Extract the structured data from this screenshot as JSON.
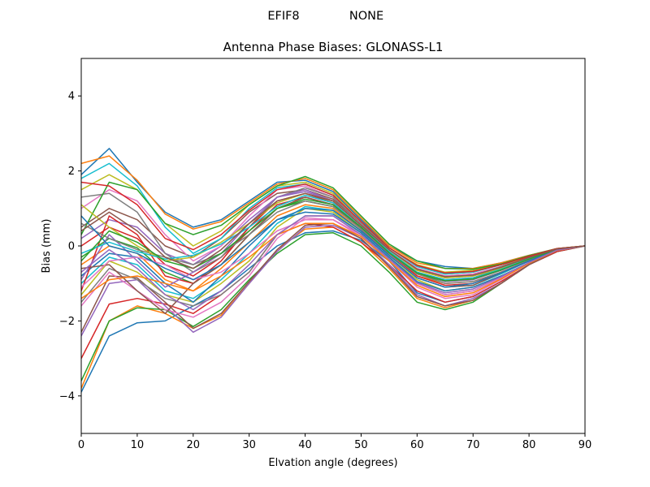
{
  "figure": {
    "suptitle_left": "EFIF8",
    "suptitle_right": "NONE"
  },
  "chart_data": {
    "type": "line",
    "title": "Antenna Phase Biases: GLONASS-L1",
    "xlabel": "Elvation angle (degrees)",
    "ylabel": "Bias (mm)",
    "xlim": [
      0,
      90
    ],
    "ylim": [
      -5,
      5
    ],
    "xticks": [
      0,
      10,
      20,
      30,
      40,
      50,
      60,
      70,
      80,
      90
    ],
    "yticks": [
      -4,
      -2,
      0,
      2,
      4
    ],
    "grid": false,
    "legend": "none",
    "x": [
      0,
      5,
      10,
      15,
      20,
      25,
      30,
      35,
      40,
      45,
      50,
      55,
      60,
      65,
      70,
      75,
      80,
      85,
      90
    ],
    "colors": [
      "#1f77b4",
      "#ff7f0e",
      "#2ca02c",
      "#d62728",
      "#9467bd",
      "#8c564b",
      "#e377c2",
      "#7f7f7f",
      "#bcbd22",
      "#17becf"
    ],
    "series": [
      {
        "values": [
          -3.9,
          -2.4,
          -2.05,
          -2.0,
          -1.6,
          -1.2,
          -0.6,
          0.0,
          0.35,
          0.4,
          0.15,
          -0.4,
          -1.25,
          -1.5,
          -1.35,
          -0.95,
          -0.5,
          -0.15,
          0.0
        ]
      },
      {
        "values": [
          -3.8,
          -2.0,
          -1.6,
          -1.8,
          -2.2,
          -1.85,
          -1.0,
          -0.1,
          0.45,
          0.5,
          0.1,
          -0.6,
          -1.4,
          -1.65,
          -1.45,
          -1.0,
          -0.5,
          -0.12,
          0.0
        ]
      },
      {
        "values": [
          -3.6,
          -2.0,
          -1.65,
          -1.7,
          -2.15,
          -1.7,
          -0.9,
          -0.2,
          0.3,
          0.35,
          0.0,
          -0.7,
          -1.5,
          -1.7,
          -1.5,
          -1.0,
          -0.5,
          -0.15,
          0.0
        ]
      },
      {
        "values": [
          -3.0,
          -1.55,
          -1.4,
          -1.55,
          -1.8,
          -1.3,
          -0.7,
          0.3,
          0.6,
          0.5,
          0.1,
          -0.5,
          -1.2,
          -1.5,
          -1.35,
          -0.95,
          -0.5,
          -0.15,
          0.0
        ]
      },
      {
        "values": [
          -2.4,
          -1.0,
          -0.9,
          -1.6,
          -2.3,
          -1.9,
          -1.0,
          -0.15,
          0.5,
          0.55,
          0.2,
          -0.5,
          -1.3,
          -1.6,
          -1.4,
          -1.0,
          -0.5,
          -0.12,
          0.0
        ]
      },
      {
        "values": [
          -2.3,
          -0.8,
          -0.85,
          -1.5,
          -2.2,
          -1.8,
          -0.95,
          -0.1,
          0.55,
          0.6,
          0.2,
          -0.55,
          -1.35,
          -1.6,
          -1.45,
          -1.0,
          -0.5,
          -0.12,
          0.0
        ]
      },
      {
        "values": [
          -1.6,
          -0.7,
          -1.2,
          -1.7,
          -1.9,
          -1.5,
          -0.8,
          0.2,
          0.75,
          0.7,
          0.25,
          -0.4,
          -1.1,
          -1.4,
          -1.3,
          -0.9,
          -0.45,
          -0.12,
          0.0
        ]
      },
      {
        "values": [
          -1.5,
          -0.6,
          -0.9,
          -1.4,
          -1.6,
          -1.3,
          -0.7,
          0.3,
          0.8,
          0.8,
          0.3,
          -0.35,
          -1.0,
          -1.3,
          -1.2,
          -0.85,
          -0.45,
          -0.12,
          0.0
        ]
      },
      {
        "values": [
          -1.3,
          -0.4,
          -0.7,
          -1.3,
          -1.5,
          -1.0,
          -0.4,
          0.5,
          1.0,
          0.9,
          0.35,
          -0.3,
          -0.9,
          -1.2,
          -1.1,
          -0.8,
          -0.45,
          -0.12,
          0.0
        ]
      },
      {
        "values": [
          -1.0,
          -0.3,
          -0.5,
          -1.2,
          -1.4,
          -0.9,
          -0.2,
          0.6,
          1.05,
          0.95,
          0.4,
          -0.25,
          -0.85,
          -1.1,
          -1.05,
          -0.75,
          -0.4,
          -0.12,
          0.0
        ]
      },
      {
        "values": [
          -0.8,
          -0.2,
          -0.3,
          -1.0,
          -1.5,
          -0.8,
          0.0,
          0.7,
          0.9,
          0.85,
          0.35,
          -0.3,
          -0.95,
          -1.2,
          -1.1,
          -0.8,
          -0.45,
          -0.12,
          0.0
        ]
      },
      {
        "values": [
          -0.5,
          0.0,
          -0.2,
          -0.9,
          -1.2,
          -0.6,
          0.1,
          0.8,
          1.1,
          1.0,
          0.4,
          -0.2,
          -0.8,
          -1.0,
          -0.95,
          -0.7,
          -0.4,
          -0.1,
          0.0
        ]
      },
      {
        "values": [
          -0.3,
          0.2,
          -0.05,
          -0.7,
          -1.0,
          -0.5,
          0.3,
          1.0,
          1.2,
          1.05,
          0.45,
          -0.2,
          -0.75,
          -0.95,
          -0.9,
          -0.65,
          -0.35,
          -0.1,
          0.0
        ]
      },
      {
        "values": [
          0.0,
          0.5,
          0.2,
          -0.5,
          -0.8,
          -0.3,
          0.4,
          1.1,
          1.3,
          1.1,
          0.5,
          -0.15,
          -0.7,
          -0.9,
          -0.85,
          -0.6,
          -0.35,
          -0.1,
          0.0
        ]
      },
      {
        "values": [
          0.2,
          0.7,
          0.5,
          -0.2,
          -0.5,
          0.0,
          0.7,
          1.3,
          1.45,
          1.2,
          0.55,
          -0.1,
          -0.6,
          -0.8,
          -0.75,
          -0.55,
          -0.3,
          -0.1,
          0.0
        ]
      },
      {
        "values": [
          0.5,
          1.0,
          0.7,
          0.0,
          -0.3,
          0.2,
          0.9,
          1.4,
          1.5,
          1.25,
          0.6,
          -0.05,
          -0.55,
          -0.75,
          -0.7,
          -0.5,
          -0.3,
          -0.08,
          0.0
        ]
      },
      {
        "values": [
          1.0,
          1.5,
          1.2,
          0.3,
          -0.4,
          0.0,
          0.8,
          1.5,
          1.6,
          1.3,
          0.6,
          -0.1,
          -0.6,
          -0.8,
          -0.75,
          -0.55,
          -0.3,
          -0.08,
          0.0
        ]
      },
      {
        "values": [
          1.3,
          1.4,
          0.9,
          -0.2,
          -0.7,
          -0.3,
          0.5,
          1.3,
          1.55,
          1.3,
          0.6,
          -0.1,
          -0.65,
          -0.85,
          -0.8,
          -0.55,
          -0.3,
          -0.08,
          0.0
        ]
      },
      {
        "values": [
          1.5,
          1.9,
          1.5,
          0.6,
          0.0,
          0.4,
          1.1,
          1.6,
          1.7,
          1.4,
          0.7,
          -0.05,
          -0.5,
          -0.7,
          -0.65,
          -0.5,
          -0.3,
          -0.08,
          0.0
        ]
      },
      {
        "values": [
          1.8,
          2.2,
          1.6,
          0.5,
          -0.2,
          0.2,
          1.0,
          1.55,
          1.65,
          1.35,
          0.65,
          -0.05,
          -0.55,
          -0.75,
          -0.7,
          -0.5,
          -0.28,
          -0.08,
          0.0
        ]
      },
      {
        "values": [
          1.9,
          2.6,
          1.7,
          0.9,
          0.5,
          0.7,
          1.2,
          1.7,
          1.75,
          1.45,
          0.7,
          0.0,
          -0.4,
          -0.55,
          -0.6,
          -0.45,
          -0.25,
          -0.07,
          0.0
        ]
      },
      {
        "values": [
          2.2,
          2.4,
          1.75,
          0.85,
          0.45,
          0.65,
          1.15,
          1.65,
          1.8,
          1.5,
          0.75,
          0.0,
          -0.45,
          -0.6,
          -0.6,
          -0.45,
          -0.25,
          -0.07,
          0.0
        ]
      },
      {
        "values": [
          0.3,
          1.7,
          1.5,
          0.6,
          0.3,
          0.55,
          1.1,
          1.6,
          1.85,
          1.55,
          0.8,
          0.05,
          -0.4,
          -0.6,
          -0.62,
          -0.48,
          -0.26,
          -0.07,
          0.0
        ]
      },
      {
        "values": [
          -1.2,
          0.8,
          0.3,
          -0.8,
          -1.0,
          -0.4,
          0.5,
          1.2,
          1.4,
          1.15,
          0.5,
          -0.2,
          -0.8,
          -1.05,
          -1.0,
          -0.7,
          -0.4,
          -0.1,
          0.0
        ]
      },
      {
        "values": [
          -0.9,
          0.3,
          -0.4,
          -1.1,
          -0.7,
          -0.2,
          0.6,
          1.3,
          1.5,
          1.2,
          0.55,
          -0.15,
          -0.7,
          -0.95,
          -0.9,
          -0.65,
          -0.35,
          -0.1,
          0.0
        ]
      },
      {
        "values": [
          -0.6,
          -0.5,
          -1.2,
          -1.8,
          -1.0,
          -0.5,
          0.3,
          1.0,
          1.3,
          1.1,
          0.45,
          -0.25,
          -0.85,
          -1.1,
          -1.05,
          -0.72,
          -0.4,
          -0.1,
          0.0
        ]
      },
      {
        "values": [
          -1.1,
          -0.4,
          -0.3,
          -0.5,
          -0.9,
          -0.7,
          -0.2,
          0.4,
          0.7,
          0.7,
          0.3,
          -0.35,
          -1.0,
          -1.3,
          -1.2,
          -0.85,
          -0.45,
          -0.12,
          0.0
        ]
      },
      {
        "values": [
          0.6,
          0.2,
          -0.1,
          -0.3,
          -0.5,
          -0.2,
          0.3,
          0.9,
          1.2,
          1.05,
          0.45,
          -0.2,
          -0.75,
          -1.0,
          -0.95,
          -0.7,
          -0.38,
          -0.1,
          0.0
        ]
      },
      {
        "values": [
          1.1,
          0.5,
          0.0,
          -0.4,
          -0.3,
          0.1,
          0.6,
          1.15,
          1.4,
          1.2,
          0.55,
          -0.1,
          -0.65,
          -0.85,
          -0.8,
          -0.6,
          -0.32,
          -0.08,
          0.0
        ]
      },
      {
        "values": [
          -0.2,
          0.1,
          -0.15,
          -0.35,
          -0.25,
          0.05,
          0.5,
          1.05,
          1.35,
          1.15,
          0.5,
          -0.15,
          -0.7,
          -0.9,
          -0.85,
          -0.62,
          -0.34,
          -0.09,
          0.0
        ]
      },
      {
        "values": [
          0.8,
          0.0,
          -0.2,
          -0.6,
          -0.9,
          -0.5,
          0.1,
          0.7,
          1.0,
          0.95,
          0.4,
          -0.25,
          -0.85,
          -1.1,
          -1.0,
          -0.72,
          -0.4,
          -0.1,
          0.0
        ]
      },
      {
        "values": [
          -1.4,
          -0.9,
          -0.8,
          -1.0,
          -1.2,
          -0.8,
          -0.3,
          0.3,
          0.6,
          0.6,
          0.25,
          -0.4,
          -1.05,
          -1.35,
          -1.25,
          -0.88,
          -0.46,
          -0.12,
          0.0
        ]
      },
      {
        "values": [
          -0.4,
          0.4,
          0.1,
          -0.4,
          -0.6,
          -0.2,
          0.4,
          1.0,
          1.25,
          1.1,
          0.5,
          -0.18,
          -0.72,
          -0.93,
          -0.88,
          -0.64,
          -0.35,
          -0.09,
          0.0
        ]
      },
      {
        "values": [
          1.7,
          1.6,
          1.1,
          0.2,
          -0.1,
          0.3,
          0.95,
          1.5,
          1.65,
          1.35,
          0.65,
          -0.05,
          -0.52,
          -0.72,
          -0.68,
          -0.5,
          -0.28,
          -0.07,
          0.0
        ]
      },
      {
        "values": [
          -0.7,
          -0.1,
          -0.6,
          -1.3,
          -1.7,
          -1.2,
          -0.5,
          0.3,
          0.8,
          0.8,
          0.3,
          -0.35,
          -0.98,
          -1.25,
          -1.15,
          -0.82,
          -0.44,
          -0.11,
          0.0
        ]
      },
      {
        "values": [
          0.4,
          0.9,
          0.4,
          -0.3,
          -0.6,
          -0.1,
          0.6,
          1.2,
          1.4,
          1.2,
          0.55,
          -0.1,
          -0.62,
          -0.82,
          -0.78,
          -0.57,
          -0.31,
          -0.08,
          0.0
        ]
      }
    ]
  }
}
